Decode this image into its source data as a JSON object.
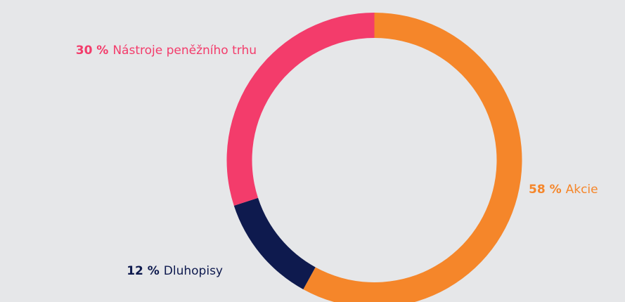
{
  "chart_data": {
    "type": "donut",
    "categories": [
      "Akcie",
      "Dluhopisy",
      "Nástroje peněžního trhu"
    ],
    "values": [
      58,
      12,
      30
    ],
    "value_labels": [
      "58 %",
      "12 %",
      "30 %"
    ],
    "colors": [
      "#f5862a",
      "#0e1a4e",
      "#f33c6b"
    ]
  }
}
